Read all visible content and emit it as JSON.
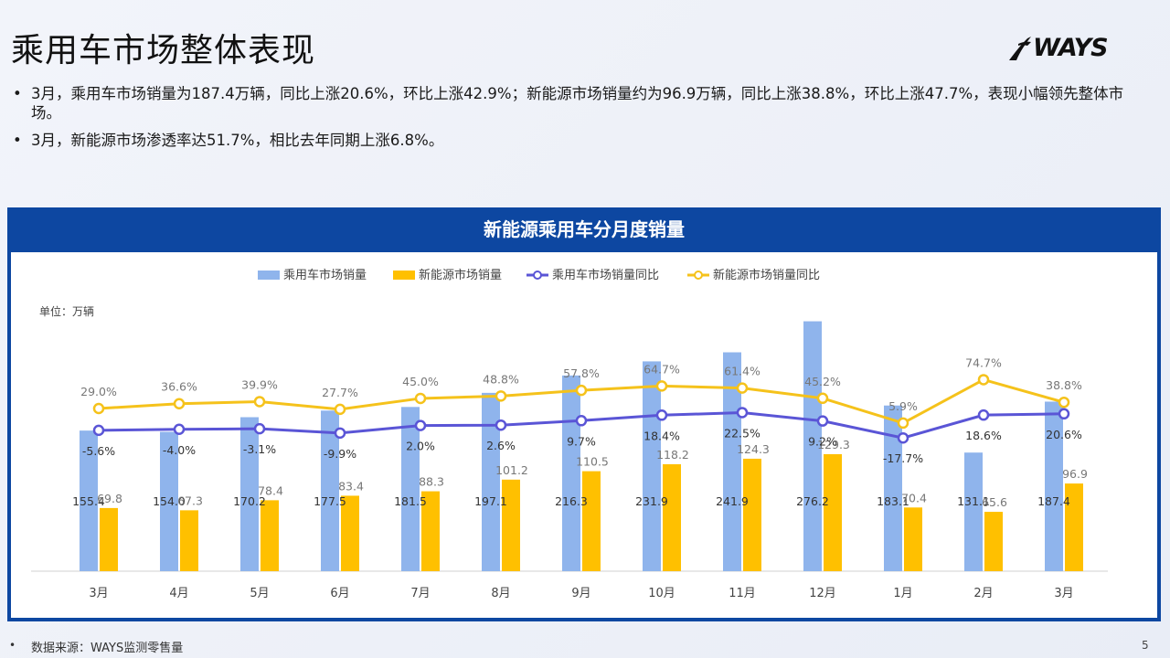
{
  "page": {
    "title": "乘用车市场整体表现",
    "logo_text": "WAYS",
    "bullets": [
      "3月，乘用车市场销量为187.4万辆，同比上涨20.6%，环比上涨42.9%；新能源市场销量约为96.9万辆，同比上涨38.8%，环比上涨47.7%，表现小幅领先整体市场。",
      "3月，新能源市场渗透率达51.7%，相比去年同期上涨6.8%。"
    ],
    "footer_bullet": "•",
    "footer_source": "数据来源：WAYS监测零售量",
    "page_number": "5"
  },
  "colors": {
    "frame": "#0d47a1",
    "bar_total": "#8fb4ec",
    "bar_nev": "#ffc000",
    "line_total": "#5a55d6",
    "line_nev": "#f5c21b"
  },
  "chart_data": {
    "type": "bar",
    "title": "新能源乘用车分月度销量",
    "unit_label": "单位：万辆",
    "categories": [
      "3月",
      "4月",
      "5月",
      "6月",
      "7月",
      "8月",
      "9月",
      "10月",
      "11月",
      "12月",
      "1月",
      "2月",
      "3月"
    ],
    "series": [
      {
        "name": "乘用车市场销量",
        "type": "bar",
        "values": [
          155.4,
          154.0,
          170.2,
          177.5,
          181.5,
          197.1,
          216.3,
          231.9,
          241.9,
          276.2,
          183.1,
          131.1,
          187.4
        ]
      },
      {
        "name": "新能源市场销量",
        "type": "bar",
        "values": [
          69.8,
          67.3,
          78.4,
          83.4,
          88.3,
          101.2,
          110.5,
          118.2,
          124.3,
          129.3,
          70.4,
          65.6,
          96.9
        ]
      },
      {
        "name": "乘用车市场销量同比",
        "type": "line",
        "values": [
          -5.6,
          -4.0,
          -3.1,
          -9.9,
          2.0,
          2.6,
          9.7,
          18.4,
          22.5,
          9.2,
          -17.7,
          18.6,
          20.6
        ],
        "labels": [
          "-5.6%",
          "-4.0%",
          "-3.1%",
          "-9.9%",
          "2.0%",
          "2.6%",
          "9.7%",
          "18.4%",
          "22.5%",
          "9.2%",
          "-17.7%",
          "18.6%",
          "20.6%"
        ]
      },
      {
        "name": "新能源市场销量同比",
        "type": "line",
        "values": [
          29.0,
          36.6,
          39.9,
          27.7,
          45.0,
          48.8,
          57.8,
          64.7,
          61.4,
          45.2,
          5.9,
          74.7,
          38.8
        ],
        "labels": [
          "29.0%",
          "36.6%",
          "39.9%",
          "27.7%",
          "45.0%",
          "48.8%",
          "57.8%",
          "64.7%",
          "61.4%",
          "45.2%",
          "5.9%",
          "74.7%",
          "38.8%"
        ]
      }
    ],
    "legend_position": "top",
    "grid": false
  }
}
